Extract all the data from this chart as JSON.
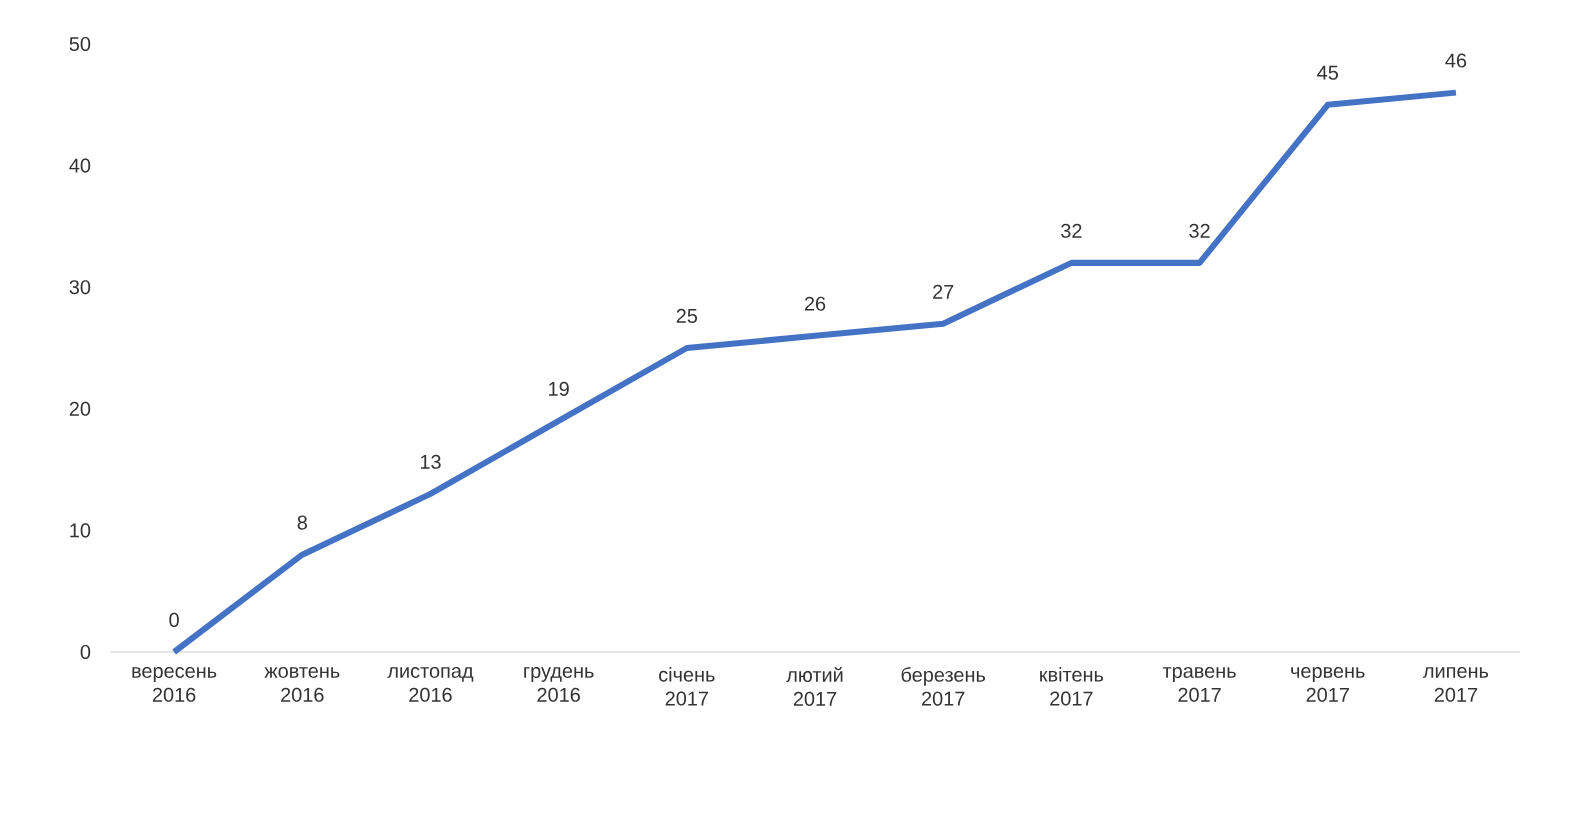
{
  "chart_data": {
    "type": "line",
    "categories": [
      "вересень 2016",
      "жовтень 2016",
      "листопад 2016",
      "грудень 2016",
      "січень 2017",
      "лютий 2017",
      "березень 2017",
      "квітень 2017",
      "травень 2017",
      "червень 2017",
      "липень 2017"
    ],
    "values": [
      0,
      8,
      13,
      19,
      25,
      26,
      27,
      32,
      32,
      45,
      46
    ],
    "color": "#4472c4",
    "ylim": [
      0,
      50
    ],
    "yticks": [
      0,
      10,
      20,
      30,
      40,
      50
    ],
    "data_labels": true,
    "grid": false,
    "marker": "none",
    "line_style": "solid"
  }
}
